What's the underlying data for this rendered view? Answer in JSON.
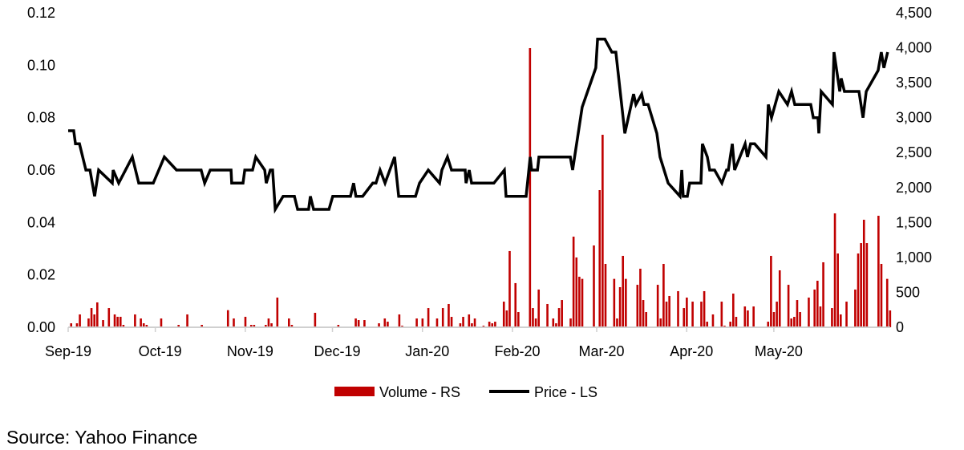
{
  "chart_data": {
    "type": "bar+line",
    "title": "",
    "x_unit": "days since 1 Sep 2019",
    "x_ticks": [
      {
        "day": 0,
        "label": "Sep-19"
      },
      {
        "day": 30,
        "label": "Oct-19"
      },
      {
        "day": 61,
        "label": "Nov-19"
      },
      {
        "day": 91,
        "label": "Dec-19"
      },
      {
        "day": 122,
        "label": "Jan-20"
      },
      {
        "day": 153,
        "label": "Feb-20"
      },
      {
        "day": 182,
        "label": "Mar-20"
      },
      {
        "day": 213,
        "label": "Apr-20"
      },
      {
        "day": 243,
        "label": "May-20"
      }
    ],
    "xlim": [
      0,
      283
    ],
    "left_axis": {
      "ylim": [
        0,
        0.12
      ],
      "ticks": [
        "0.00",
        "0.02",
        "0.04",
        "0.06",
        "0.08",
        "0.10",
        "0.12"
      ],
      "values": [
        0,
        0.02,
        0.04,
        0.06,
        0.08,
        0.1,
        0.12
      ]
    },
    "right_axis": {
      "ylim": [
        0,
        4500
      ],
      "ticks": [
        "0",
        "500",
        "1,000",
        "1,500",
        "2,000",
        "2,500",
        "3,000",
        "3,500",
        "4,000",
        "4,500"
      ],
      "values": [
        0,
        500,
        1000,
        1500,
        2000,
        2500,
        3000,
        3500,
        4000,
        4500
      ]
    },
    "legend": {
      "placement": "bottom",
      "entries": [
        {
          "label": "Volume - RS",
          "color": "#c00000"
        },
        {
          "label": "Price - LS",
          "color": "#000000"
        }
      ]
    },
    "series": [
      {
        "name": "Volume - RS",
        "type": "bar",
        "axis": "right",
        "color": "#c00000",
        "points": [
          [
            1,
            57
          ],
          [
            3,
            57
          ],
          [
            4,
            184
          ],
          [
            7,
            126
          ],
          [
            8,
            275
          ],
          [
            9,
            184
          ],
          [
            10,
            356
          ],
          [
            12,
            103
          ],
          [
            14,
            275
          ],
          [
            16,
            184
          ],
          [
            17,
            150
          ],
          [
            18,
            150
          ],
          [
            19,
            34
          ],
          [
            23,
            184
          ],
          [
            25,
            126
          ],
          [
            26,
            57
          ],
          [
            27,
            34
          ],
          [
            30,
            11
          ],
          [
            32,
            126
          ],
          [
            38,
            34
          ],
          [
            41,
            184
          ],
          [
            46,
            34
          ],
          [
            55,
            245
          ],
          [
            57,
            126
          ],
          [
            61,
            150
          ],
          [
            63,
            34
          ],
          [
            64,
            34
          ],
          [
            68,
            34
          ],
          [
            69,
            126
          ],
          [
            70,
            57
          ],
          [
            72,
            425
          ],
          [
            76,
            126
          ],
          [
            77,
            34
          ],
          [
            85,
            207
          ],
          [
            93,
            34
          ],
          [
            99,
            126
          ],
          [
            100,
            103
          ],
          [
            102,
            103
          ],
          [
            107,
            57
          ],
          [
            109,
            126
          ],
          [
            110,
            80
          ],
          [
            114,
            184
          ],
          [
            115,
            23
          ],
          [
            120,
            126
          ],
          [
            122,
            126
          ],
          [
            124,
            275
          ],
          [
            127,
            126
          ],
          [
            129,
            275
          ],
          [
            131,
            333
          ],
          [
            132,
            149
          ],
          [
            135,
            57
          ],
          [
            136,
            149
          ],
          [
            138,
            184
          ],
          [
            139,
            57
          ],
          [
            140,
            126
          ],
          [
            143,
            23
          ],
          [
            145,
            80
          ],
          [
            146,
            57
          ],
          [
            147,
            80
          ],
          [
            150,
            367
          ],
          [
            151,
            241
          ],
          [
            152,
            1091
          ],
          [
            154,
            632
          ],
          [
            155,
            218
          ],
          [
            159,
            3995
          ],
          [
            160,
            275
          ],
          [
            161,
            126
          ],
          [
            162,
            540
          ],
          [
            165,
            333
          ],
          [
            167,
            126
          ],
          [
            168,
            57
          ],
          [
            169,
            275
          ],
          [
            170,
            390
          ],
          [
            173,
            126
          ],
          [
            174,
            1297
          ],
          [
            175,
            999
          ],
          [
            176,
            723
          ],
          [
            177,
            693
          ],
          [
            181,
            1171
          ],
          [
            183,
            1963
          ],
          [
            184,
            2755
          ],
          [
            185,
            907
          ],
          [
            188,
            693
          ],
          [
            189,
            126
          ],
          [
            190,
            574
          ],
          [
            191,
            1022
          ],
          [
            192,
            693
          ],
          [
            196,
            608
          ],
          [
            197,
            838
          ],
          [
            198,
            390
          ],
          [
            199,
            218
          ],
          [
            203,
            608
          ],
          [
            204,
            126
          ],
          [
            205,
            907
          ],
          [
            206,
            367
          ],
          [
            207,
            448
          ],
          [
            210,
            517
          ],
          [
            212,
            275
          ],
          [
            213,
            425
          ],
          [
            215,
            367
          ],
          [
            218,
            367
          ],
          [
            219,
            517
          ],
          [
            220,
            80
          ],
          [
            222,
            184
          ],
          [
            225,
            367
          ],
          [
            226,
            23
          ],
          [
            228,
            80
          ],
          [
            229,
            482
          ],
          [
            230,
            149
          ],
          [
            233,
            298
          ],
          [
            234,
            241
          ],
          [
            236,
            298
          ],
          [
            241,
            80
          ],
          [
            242,
            1022
          ],
          [
            243,
            218
          ],
          [
            244,
            367
          ],
          [
            245,
            815
          ],
          [
            248,
            608
          ],
          [
            249,
            126
          ],
          [
            250,
            149
          ],
          [
            251,
            390
          ],
          [
            252,
            218
          ],
          [
            255,
            425
          ],
          [
            257,
            540
          ],
          [
            258,
            666
          ],
          [
            259,
            298
          ],
          [
            260,
            930
          ],
          [
            263,
            275
          ],
          [
            264,
            1630
          ],
          [
            265,
            1056
          ],
          [
            266,
            184
          ],
          [
            268,
            367
          ],
          [
            271,
            540
          ],
          [
            272,
            1056
          ],
          [
            273,
            1205
          ],
          [
            274,
            1539
          ],
          [
            275,
            1205
          ],
          [
            279,
            1596
          ],
          [
            280,
            907
          ],
          [
            282,
            693
          ],
          [
            283,
            241
          ]
        ]
      },
      {
        "name": "Price - LS",
        "type": "line",
        "axis": "left",
        "color": "#000000",
        "points": [
          [
            0,
            0.075
          ],
          [
            1.9,
            0.075
          ],
          [
            2.5,
            0.07
          ],
          [
            3.9,
            0.07
          ],
          [
            6.1,
            0.06
          ],
          [
            7.5,
            0.06
          ],
          [
            9.1,
            0.05
          ],
          [
            10.5,
            0.06
          ],
          [
            15.2,
            0.055
          ],
          [
            15.5,
            0.06
          ],
          [
            17.4,
            0.055
          ],
          [
            22.1,
            0.065
          ],
          [
            24.3,
            0.055
          ],
          [
            29.3,
            0.055
          ],
          [
            31.2,
            0.06
          ],
          [
            33.1,
            0.065
          ],
          [
            37.3,
            0.06
          ],
          [
            45.8,
            0.06
          ],
          [
            47.0,
            0.055
          ],
          [
            48.9,
            0.06
          ],
          [
            56.1,
            0.06
          ],
          [
            56.3,
            0.055
          ],
          [
            60.2,
            0.055
          ],
          [
            60.8,
            0.06
          ],
          [
            63.5,
            0.06
          ],
          [
            64.6,
            0.065
          ],
          [
            67.7,
            0.06
          ],
          [
            68.2,
            0.055
          ],
          [
            69.6,
            0.06
          ],
          [
            70.4,
            0.06
          ],
          [
            71.3,
            0.045
          ],
          [
            74.0,
            0.05
          ],
          [
            77.9,
            0.05
          ],
          [
            79.0,
            0.045
          ],
          [
            82.8,
            0.045
          ],
          [
            83.4,
            0.05
          ],
          [
            84.5,
            0.045
          ],
          [
            89.8,
            0.045
          ],
          [
            91.1,
            0.05
          ],
          [
            97.2,
            0.05
          ],
          [
            98.3,
            0.055
          ],
          [
            99.1,
            0.05
          ],
          [
            101.4,
            0.05
          ],
          [
            104.9,
            0.055
          ],
          [
            106.0,
            0.055
          ],
          [
            107.4,
            0.06
          ],
          [
            109.1,
            0.055
          ],
          [
            112.4,
            0.065
          ],
          [
            113.8,
            0.05
          ],
          [
            119.6,
            0.05
          ],
          [
            121.0,
            0.055
          ],
          [
            124.0,
            0.06
          ],
          [
            127.9,
            0.055
          ],
          [
            128.7,
            0.06
          ],
          [
            130.6,
            0.065
          ],
          [
            132.0,
            0.06
          ],
          [
            136.7,
            0.06
          ],
          [
            137.0,
            0.055
          ],
          [
            138.1,
            0.06
          ],
          [
            138.9,
            0.055
          ],
          [
            146.6,
            0.055
          ],
          [
            150.2,
            0.06
          ],
          [
            150.8,
            0.05
          ],
          [
            157.7,
            0.05
          ],
          [
            159.1,
            0.065
          ],
          [
            159.6,
            0.06
          ],
          [
            161.6,
            0.06
          ],
          [
            162.1,
            0.065
          ],
          [
            172.9,
            0.065
          ],
          [
            173.7,
            0.06
          ],
          [
            177.0,
            0.084
          ],
          [
            181.7,
            0.099
          ],
          [
            182.3,
            0.11
          ],
          [
            184.8,
            0.11
          ],
          [
            187.2,
            0.105
          ],
          [
            188.6,
            0.105
          ],
          [
            191.7,
            0.074
          ],
          [
            194.7,
            0.089
          ],
          [
            195.5,
            0.085
          ],
          [
            197.5,
            0.089
          ],
          [
            198.3,
            0.085
          ],
          [
            199.7,
            0.085
          ],
          [
            202.7,
            0.074
          ],
          [
            203.8,
            0.065
          ],
          [
            206.6,
            0.055
          ],
          [
            210.7,
            0.05
          ],
          [
            211.3,
            0.06
          ],
          [
            211.8,
            0.05
          ],
          [
            213.2,
            0.05
          ],
          [
            214.0,
            0.055
          ],
          [
            217.9,
            0.055
          ],
          [
            218.4,
            0.07
          ],
          [
            220.1,
            0.065
          ],
          [
            220.9,
            0.06
          ],
          [
            222.6,
            0.06
          ],
          [
            225.1,
            0.055
          ],
          [
            226.7,
            0.06
          ],
          [
            227.3,
            0.06
          ],
          [
            228.7,
            0.07
          ],
          [
            229.5,
            0.06
          ],
          [
            233.1,
            0.07
          ],
          [
            233.9,
            0.065
          ],
          [
            235.0,
            0.07
          ],
          [
            236.4,
            0.07
          ],
          [
            240.3,
            0.065
          ],
          [
            241.1,
            0.085
          ],
          [
            242.2,
            0.08
          ],
          [
            244.7,
            0.09
          ],
          [
            247.7,
            0.085
          ],
          [
            249.1,
            0.09
          ],
          [
            250.2,
            0.085
          ],
          [
            255.7,
            0.085
          ],
          [
            256.6,
            0.08
          ],
          [
            258.2,
            0.08
          ],
          [
            258.5,
            0.074
          ],
          [
            259.3,
            0.09
          ],
          [
            263.2,
            0.085
          ],
          [
            263.7,
            0.105
          ],
          [
            265.7,
            0.09
          ],
          [
            266.2,
            0.095
          ],
          [
            267.3,
            0.09
          ],
          [
            272.3,
            0.09
          ],
          [
            273.7,
            0.08
          ],
          [
            274.8,
            0.09
          ],
          [
            278.9,
            0.098
          ],
          [
            280.0,
            0.105
          ],
          [
            280.9,
            0.099
          ],
          [
            282.2,
            0.105
          ]
        ]
      }
    ]
  },
  "source": "Source: Yahoo Finance"
}
